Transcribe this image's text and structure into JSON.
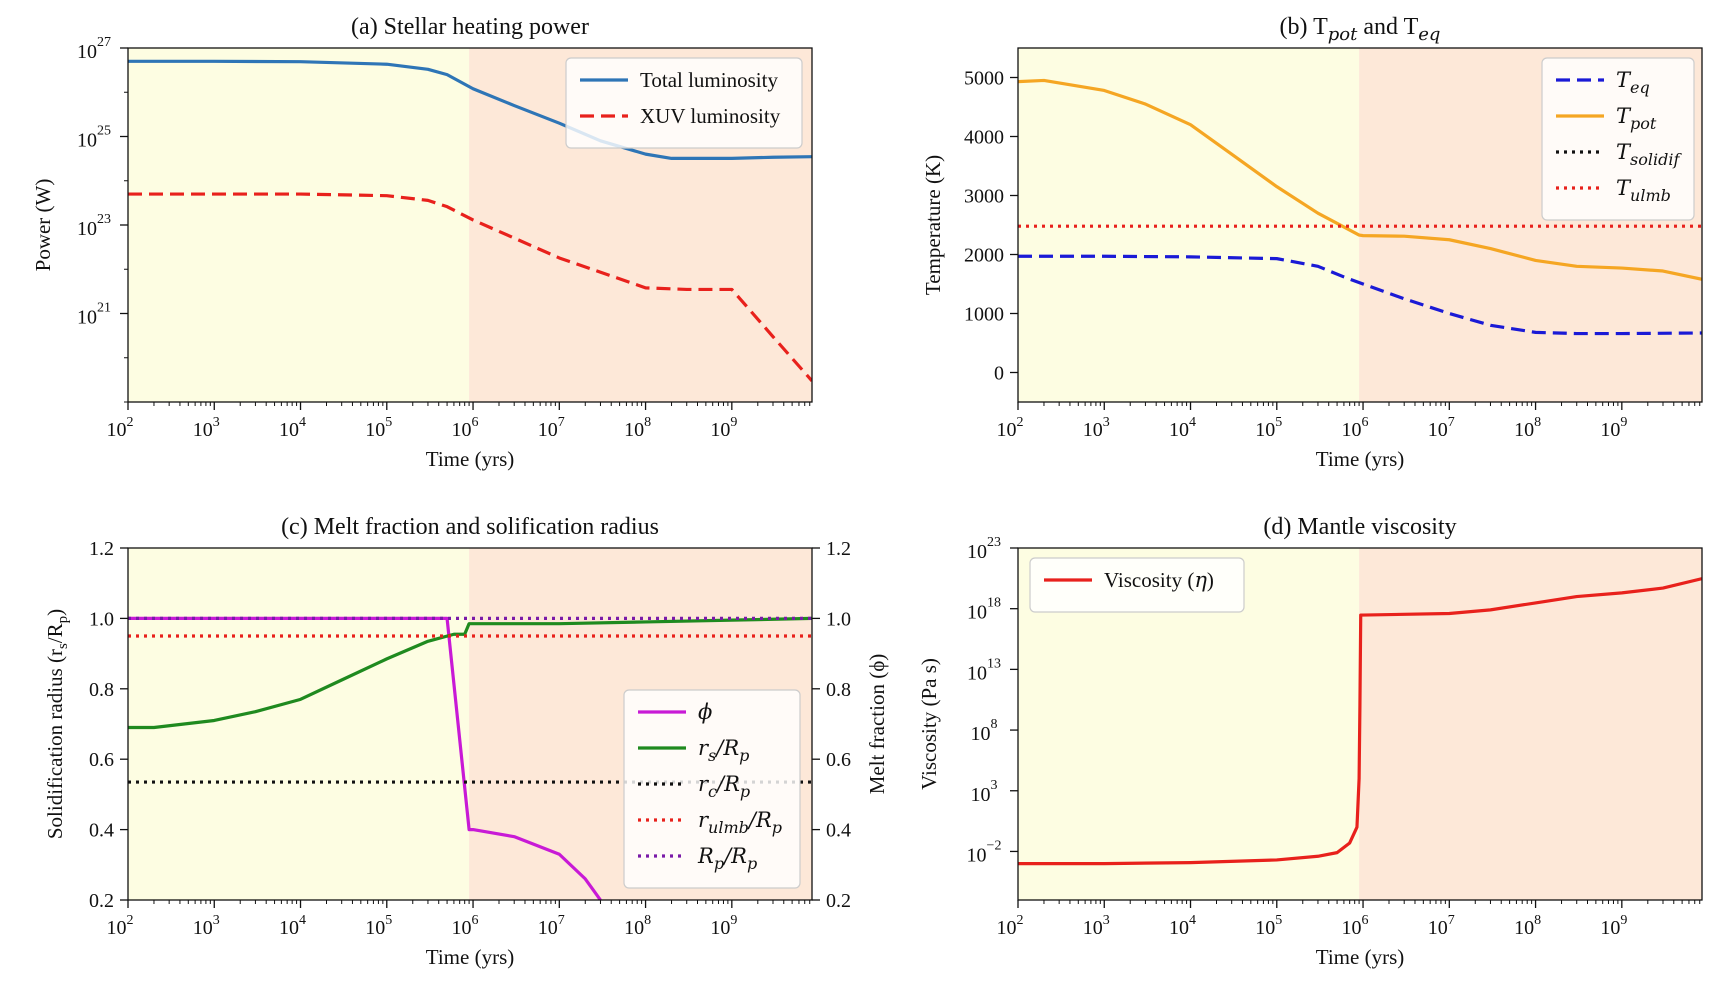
{
  "chart_data": [
    {
      "id": "a",
      "type": "line",
      "title": "(a) Stellar heating power",
      "xlabel": "Time (yrs)",
      "ylabel": "Power (W)",
      "xscale": "log",
      "yscale": "log",
      "xlim": [
        100,
        8500000000
      ],
      "ylim": [
        1e+19,
        1e+27
      ],
      "xticks": [
        {
          "v": 100,
          "m": "2"
        },
        {
          "v": 1000,
          "m": "3"
        },
        {
          "v": 10000,
          "m": "4"
        },
        {
          "v": 100000,
          "m": "5"
        },
        {
          "v": 1000000,
          "m": "6"
        },
        {
          "v": 10000000,
          "m": "7"
        },
        {
          "v": 100000000,
          "m": "8"
        },
        {
          "v": 1000000000,
          "m": "9"
        }
      ],
      "yticks": [
        {
          "v": 1e+21,
          "m": "21"
        },
        {
          "v": 1e+23,
          "m": "23"
        },
        {
          "v": 1e+25,
          "m": "25"
        },
        {
          "v": 1e+27,
          "m": "27"
        }
      ],
      "shading": [
        {
          "from": 100,
          "to": 900000,
          "color": "#fdfde2"
        },
        {
          "from": 900000,
          "to": 8500000000,
          "color": "#fde8d8"
        }
      ],
      "legend_position": "upper-right",
      "series": [
        {
          "name": "Total luminosity",
          "color": "#2e75b6",
          "dash": "solid",
          "x": [
            100,
            1000,
            10000,
            100000,
            300000,
            500000,
            1000000,
            3000000,
            10000000,
            30000000,
            100000000,
            200000000,
            500000000,
            1000000000,
            3000000000,
            8500000000
          ],
          "y": [
            5e+26,
            5e+26,
            4.9e+26,
            4.3e+26,
            3.3e+26,
            2.5e+26,
            1.2e+26,
            5e+25,
            2e+25,
            8e+24,
            4e+24,
            3.2e+24,
            3.2e+24,
            3.2e+24,
            3.4e+24,
            3.5e+24
          ]
        },
        {
          "name": "XUV luminosity",
          "color": "#e8211c",
          "dash": "dashed",
          "x": [
            100,
            1000,
            10000,
            100000,
            300000,
            500000,
            1000000,
            10000000,
            100000000,
            300000000,
            1000000000,
            3000000000,
            8500000000
          ],
          "y": [
            5e+23,
            5e+23,
            5e+23,
            4.6e+23,
            3.6e+23,
            2.6e+23,
            1.3e+23,
            1.8e+22,
            3.8e+21,
            3.5e+21,
            3.5e+21,
            3e+20,
            3e+19
          ]
        }
      ]
    },
    {
      "id": "b",
      "type": "line",
      "title": "(b) T",
      "title_parts": {
        "base1": "(b) T",
        "sub1": "pot",
        "mid": " and T",
        "sub2": "eq"
      },
      "xlabel": "Time (yrs)",
      "ylabel": "Temperature (K)",
      "xscale": "log",
      "yscale": "linear",
      "xlim": [
        100,
        8500000000
      ],
      "ylim": [
        -500,
        5500
      ],
      "xticks": [
        {
          "v": 100,
          "m": "2"
        },
        {
          "v": 1000,
          "m": "3"
        },
        {
          "v": 10000,
          "m": "4"
        },
        {
          "v": 100000,
          "m": "5"
        },
        {
          "v": 1000000,
          "m": "6"
        },
        {
          "v": 10000000,
          "m": "7"
        },
        {
          "v": 100000000,
          "m": "8"
        },
        {
          "v": 1000000000,
          "m": "9"
        }
      ],
      "yticks": [
        0,
        1000,
        2000,
        3000,
        4000,
        5000
      ],
      "shading": [
        {
          "from": 100,
          "to": 900000,
          "color": "#fdfde2"
        },
        {
          "from": 900000,
          "to": 8500000000,
          "color": "#fde8d8"
        }
      ],
      "legend_position": "upper-right",
      "series": [
        {
          "name": "T",
          "sub": "eq",
          "color": "#1a1ad6",
          "dash": "dashed",
          "x": [
            100,
            1000,
            10000,
            100000,
            300000,
            600000,
            1000000,
            3000000,
            10000000,
            30000000,
            100000000,
            300000000,
            1000000000,
            8500000000
          ],
          "y": [
            1970,
            1970,
            1960,
            1930,
            1800,
            1620,
            1500,
            1250,
            1000,
            800,
            680,
            660,
            660,
            670
          ]
        },
        {
          "name": "T",
          "sub": "pot",
          "color": "#f5a623",
          "dash": "solid",
          "x": [
            100,
            200,
            1000,
            3000,
            10000,
            30000,
            100000,
            300000,
            900000,
            1000000,
            3000000,
            10000000,
            30000000,
            100000000,
            300000000,
            1000000000,
            3000000000,
            8500000000
          ],
          "y": [
            4930,
            4950,
            4780,
            4550,
            4200,
            3700,
            3150,
            2700,
            2330,
            2320,
            2310,
            2250,
            2100,
            1900,
            1800,
            1770,
            1720,
            1580
          ]
        },
        {
          "name": "T",
          "sub": "solidif",
          "color": "#111111",
          "dash": "dotted",
          "x": [],
          "y": []
        },
        {
          "name": "T",
          "sub": "ulmb",
          "color": "#e8211c",
          "dash": "dotted",
          "x": [
            100,
            8500000000
          ],
          "y": [
            2480,
            2480
          ]
        }
      ]
    },
    {
      "id": "c",
      "type": "line",
      "title": "(c) Melt fraction and solification radius",
      "xlabel": "Time (yrs)",
      "ylabel": "Solidification radius (r",
      "ylabel_parts": {
        "base": "Solidification radius (r",
        "sub": "s",
        "mid": "/R",
        "sub2": "p",
        "end": ")"
      },
      "ylabel_right": "Melt fraction (ϕ)",
      "xscale": "log",
      "yscale": "linear",
      "xlim": [
        100,
        8500000000
      ],
      "ylim": [
        0.2,
        1.2
      ],
      "ylim_right": [
        0.2,
        1.2
      ],
      "xticks": [
        {
          "v": 100,
          "m": "2"
        },
        {
          "v": 1000,
          "m": "3"
        },
        {
          "v": 10000,
          "m": "4"
        },
        {
          "v": 100000,
          "m": "5"
        },
        {
          "v": 1000000,
          "m": "6"
        },
        {
          "v": 10000000,
          "m": "7"
        },
        {
          "v": 100000000,
          "m": "8"
        },
        {
          "v": 1000000000,
          "m": "9"
        }
      ],
      "yticks": [
        "0.2",
        "0.4",
        "0.6",
        "0.8",
        "1.0",
        "1.2"
      ],
      "shading": [
        {
          "from": 100,
          "to": 900000,
          "color": "#fdfde2"
        },
        {
          "from": 900000,
          "to": 8500000000,
          "color": "#fde8d8"
        }
      ],
      "legend_position": "center-right",
      "series": [
        {
          "name": "ϕ",
          "color": "#c81ad6",
          "dash": "solid",
          "x": [
            100,
            1000,
            10000,
            100000,
            500000,
            900000,
            1000000,
            3000000,
            10000000,
            20000000,
            30000000
          ],
          "y": [
            1.0,
            1.0,
            1.0,
            1.0,
            1.0,
            0.4,
            0.4,
            0.38,
            0.33,
            0.26,
            0.2
          ]
        },
        {
          "name": "r",
          "sub": "s",
          "post": "/R",
          "sub2": "p",
          "color": "#1f8a1f",
          "dash": "solid",
          "x": [
            100,
            200,
            1000,
            3000,
            10000,
            30000,
            100000,
            300000,
            600000,
            800000,
            900000,
            1000000,
            10000000,
            100000000,
            1000000000,
            8500000000
          ],
          "y": [
            0.69,
            0.69,
            0.71,
            0.735,
            0.77,
            0.825,
            0.885,
            0.935,
            0.955,
            0.955,
            0.985,
            0.985,
            0.985,
            0.99,
            0.995,
            1.0
          ]
        },
        {
          "name": "r",
          "sub": "c",
          "post": "/R",
          "sub2": "p",
          "color": "#111111",
          "dash": "dotted",
          "x": [
            100,
            8500000000
          ],
          "y": [
            0.535,
            0.535
          ]
        },
        {
          "name": "r",
          "sub": "ulmb",
          "post": "/R",
          "sub2": "p",
          "color": "#e8211c",
          "dash": "dotted",
          "x": [
            100,
            8500000000
          ],
          "y": [
            0.95,
            0.95
          ]
        },
        {
          "name": "R",
          "sub": "p",
          "post": "/R",
          "sub2": "p",
          "color": "#7a1aa8",
          "dash": "dotted",
          "x": [
            100,
            8500000000
          ],
          "y": [
            1.0,
            1.0
          ]
        }
      ]
    },
    {
      "id": "d",
      "type": "line",
      "title": "(d) Mantle viscosity",
      "xlabel": "Time (yrs)",
      "ylabel": "Viscosity (Pa s)",
      "xscale": "log",
      "yscale": "log",
      "xlim": [
        100,
        8500000000
      ],
      "ylim": [
        1e-06,
        1e+23
      ],
      "xticks": [
        {
          "v": 100,
          "m": "2"
        },
        {
          "v": 1000,
          "m": "3"
        },
        {
          "v": 10000,
          "m": "4"
        },
        {
          "v": 100000,
          "m": "5"
        },
        {
          "v": 1000000,
          "m": "6"
        },
        {
          "v": 10000000,
          "m": "7"
        },
        {
          "v": 100000000,
          "m": "8"
        },
        {
          "v": 1000000000,
          "m": "9"
        }
      ],
      "yticks": [
        {
          "v": 0.01,
          "m": "−2"
        },
        {
          "v": 1000,
          "m": "3"
        },
        {
          "v": 100000000.0,
          "m": "8"
        },
        {
          "v": 10000000000000.0,
          "m": "13"
        },
        {
          "v": 1e+18,
          "m": "18"
        },
        {
          "v": 1e+23,
          "m": "23"
        }
      ],
      "shading": [
        {
          "from": 100,
          "to": 900000,
          "color": "#fdfde2"
        },
        {
          "from": 900000,
          "to": 8500000000,
          "color": "#fde8d8"
        }
      ],
      "legend_position": "upper-left",
      "series": [
        {
          "name": "Viscosity (",
          "italic": "η",
          "post": ")",
          "color": "#e8211c",
          "dash": "solid",
          "x": [
            100,
            1000,
            10000,
            100000,
            300000,
            500000,
            700000,
            850000,
            900000,
            920000,
            940000,
            1000000,
            10000000,
            30000000,
            100000000,
            300000000,
            1000000000,
            3000000000,
            8500000000
          ],
          "y": [
            0.001,
            0.001,
            0.0012,
            0.002,
            0.004,
            0.008,
            0.05,
            1,
            10000.0,
            10000000000.0,
            3e+17,
            3e+17,
            4e+17,
            8e+17,
            3e+18,
            1e+19,
            2e+19,
            5e+19,
            3e+20
          ]
        }
      ]
    }
  ]
}
